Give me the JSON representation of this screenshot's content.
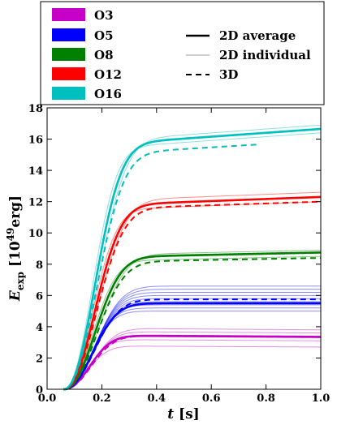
{
  "chart_data": {
    "type": "line",
    "title": "",
    "xlabel_var": "t",
    "xlabel_unit": " [s]",
    "ylabel_var": "E",
    "ylabel_sub": "exp",
    "ylabel_pre": " [10",
    "ylabel_exp": "49",
    "ylabel_post": "erg]",
    "xlim": [
      0.0,
      1.0
    ],
    "ylim": [
      0,
      18
    ],
    "xticks": [
      "0.0",
      "0.2",
      "0.4",
      "0.6",
      "0.8",
      "1.0"
    ],
    "xtick_values": [
      0.0,
      0.2,
      0.4,
      0.6,
      0.8,
      1.0
    ],
    "yticks": [
      "0",
      "2",
      "4",
      "6",
      "8",
      "10",
      "12",
      "14",
      "16",
      "18"
    ],
    "ytick_values": [
      0,
      2,
      4,
      6,
      8,
      10,
      12,
      14,
      16,
      18
    ],
    "legend_placement": "above plot",
    "legend": {
      "models": [
        {
          "label": "O3",
          "color": "#c600c6"
        },
        {
          "label": "O5",
          "color": "#0000ff"
        },
        {
          "label": "O8",
          "color": "#008000"
        },
        {
          "label": "O12",
          "color": "#ff0000"
        },
        {
          "label": "O16",
          "color": "#00bfbf"
        }
      ],
      "styles": [
        {
          "label": "2D average",
          "style": "solid-thick"
        },
        {
          "label": "2D individual",
          "style": "solid-thin"
        },
        {
          "label": "3D",
          "style": "dashed"
        }
      ]
    },
    "series": [
      {
        "name": "O3",
        "color": "#c600c6",
        "avg2d_final": 3.35,
        "ind2d_finals": [
          2.7,
          3.1,
          3.3,
          3.4,
          3.6,
          3.8
        ],
        "d3_final": 3.35,
        "d3_end": 1.0,
        "avg2d_x": [
          0.06,
          0.1,
          0.15,
          0.2,
          0.25,
          0.3,
          0.4,
          0.6,
          0.8,
          1.0
        ],
        "avg2d_y": [
          0.0,
          0.9,
          2.0,
          3.1,
          3.5,
          3.5,
          3.4,
          3.35,
          3.35,
          3.35
        ]
      },
      {
        "name": "O5",
        "color": "#0000ff",
        "avg2d_final": 5.5,
        "ind2d_finals": [
          5.0,
          5.2,
          5.4,
          5.6,
          5.8,
          6.0,
          6.2,
          6.4,
          6.6
        ],
        "d3_final": 5.75,
        "d3_end": 1.0,
        "avg2d_x": [
          0.06,
          0.1,
          0.15,
          0.2,
          0.25,
          0.3,
          0.4,
          0.6,
          0.8,
          1.0
        ],
        "avg2d_y": [
          0.0,
          1.0,
          2.6,
          4.5,
          5.4,
          5.5,
          5.5,
          5.5,
          5.5,
          5.5
        ]
      },
      {
        "name": "O8",
        "color": "#008000",
        "avg2d_final": 8.75,
        "ind2d_finals": [
          8.5,
          8.7,
          8.9
        ],
        "d3_final": 8.4,
        "d3_end": 1.0,
        "avg2d_x": [
          0.06,
          0.1,
          0.15,
          0.2,
          0.25,
          0.3,
          0.4,
          0.6,
          0.8,
          1.0
        ],
        "avg2d_y": [
          0.0,
          1.2,
          3.5,
          6.3,
          7.8,
          8.4,
          8.6,
          8.7,
          8.75,
          8.75
        ]
      },
      {
        "name": "O12",
        "color": "#ff0000",
        "avg2d_final": 12.3,
        "ind2d_finals": [
          12.0,
          12.3,
          12.6
        ],
        "d3_final": 12.0,
        "d3_end": 1.0,
        "avg2d_x": [
          0.06,
          0.1,
          0.15,
          0.2,
          0.25,
          0.3,
          0.4,
          0.6,
          0.8,
          1.0
        ],
        "avg2d_y": [
          0.0,
          1.6,
          5.0,
          9.0,
          11.2,
          11.8,
          12.0,
          12.1,
          12.2,
          12.3
        ]
      },
      {
        "name": "O16",
        "color": "#00bfbf",
        "avg2d_final": 16.65,
        "ind2d_finals": [
          16.4,
          16.7,
          16.9
        ],
        "d3_final": 15.9,
        "d3_end": 0.77,
        "avg2d_x": [
          0.06,
          0.1,
          0.15,
          0.2,
          0.25,
          0.3,
          0.4,
          0.6,
          0.8,
          1.0
        ],
        "avg2d_y": [
          0.0,
          2.2,
          7.0,
          12.5,
          14.8,
          15.5,
          15.9,
          16.2,
          16.45,
          16.65
        ]
      }
    ]
  }
}
